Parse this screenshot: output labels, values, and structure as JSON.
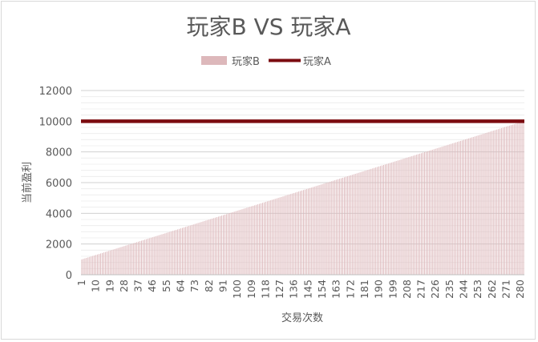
{
  "chart_data": {
    "type": "bar",
    "title": "玩家B VS 玩家A",
    "xlabel": "交易次数",
    "ylabel": "当前盈利",
    "ylim": [
      0,
      12000
    ],
    "y_ticks": [
      "0",
      "2000",
      "4000",
      "6000",
      "8000",
      "10000",
      "12000"
    ],
    "x_range": [
      1,
      282
    ],
    "x_ticks": [
      "1",
      "10",
      "19",
      "28",
      "37",
      "46",
      "55",
      "64",
      "73",
      "82",
      "91",
      "100",
      "109",
      "118",
      "127",
      "136",
      "145",
      "154",
      "163",
      "172",
      "181",
      "190",
      "199",
      "208",
      "217",
      "226",
      "235",
      "244",
      "253",
      "262",
      "271",
      "280"
    ],
    "legend_position": "top",
    "grid": true,
    "series": [
      {
        "name": "玩家B",
        "kind": "bar",
        "color": "#ddb8bb",
        "x_start": 1,
        "x_end": 282,
        "value_start": 1000,
        "value_end": 10000
      },
      {
        "name": "玩家A",
        "kind": "line",
        "color": "#7b0b10",
        "constant_value": 10000
      }
    ]
  }
}
